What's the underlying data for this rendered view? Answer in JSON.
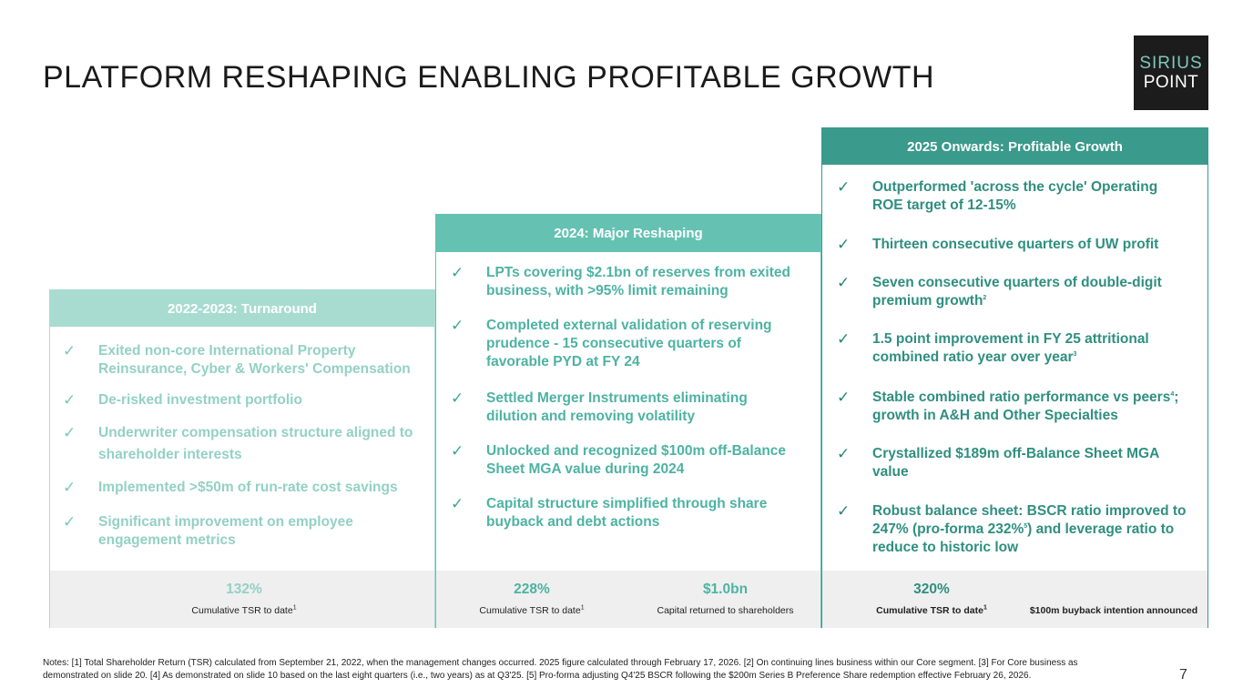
{
  "title": "PLATFORM RESHAPING ENABLING PROFITABLE GROWTH",
  "logo": {
    "line1": "SIRIUS",
    "line2": "POINT"
  },
  "check_glyph": "✓",
  "colors": {
    "phase1": "#a8dcd1",
    "phase2": "#65c2b2",
    "phase3": "#3a9a8b"
  },
  "columns": [
    {
      "header": "2022-2023: Turnaround",
      "items": [
        "Exited non-core International Property Reinsurance, Cyber & Workers' Compensation",
        "De-risked investment portfolio",
        "Underwriter compensation structure aligned to shareholder interests",
        "Implemented >$50m of run-rate cost savings",
        "Significant improvement on employee engagement metrics"
      ],
      "metrics": [
        {
          "value": "132%",
          "label": "Cumulative TSR to date",
          "note": "1"
        }
      ]
    },
    {
      "header": "2024: Major Reshaping",
      "items": [
        "LPTs covering $2.1bn of reserves from exited business, with >95% limit remaining",
        "Completed external validation of reserving prudence - 15 consecutive quarters of favorable PYD at FY 24",
        "Settled Merger Instruments eliminating dilution and removing volatility",
        "Unlocked and recognized $100m off-Balance Sheet MGA value during 2024",
        "Capital structure simplified through share buyback and debt actions"
      ],
      "metrics": [
        {
          "value": "228%",
          "label": "Cumulative TSR to date",
          "note": "1"
        },
        {
          "value": "$1.0bn",
          "label": "Capital returned to shareholders"
        }
      ]
    },
    {
      "header": "2025 Onwards: Profitable Growth",
      "items": [
        "Outperformed 'across the cycle' Operating ROE target of 12-15%",
        "Thirteen consecutive quarters of UW profit",
        "Seven consecutive quarters of double-digit premium growth",
        "1.5 point improvement in FY 25 attritional combined ratio year over year",
        "Stable combined ratio performance vs peers",
        "growth in A&H and Other Specialties",
        "Crystallized $189m off-Balance Sheet MGA value",
        "Robust balance sheet: BSCR ratio improved to 247% (pro-forma 232%",
        ") and leverage ratio to reduce to historic low"
      ],
      "footnotes": {
        "premium": "2",
        "attritional": "3",
        "peers": "4",
        "proforma": "5"
      },
      "metrics": [
        {
          "value": "320%",
          "label": "Cumulative TSR to date",
          "note": "1"
        },
        {
          "value": "",
          "label": "$100m buyback intention announced"
        }
      ]
    }
  ],
  "notes": "Notes: [1] Total Shareholder Return (TSR) calculated from September 21, 2022, when the management changes occurred. 2025 figure calculated through February 17, 2026. [2]  On continuing lines business within our Core segment. [3] For Core business as demonstrated on slide 20. [4] As demonstrated on slide 10 based on the last eight quarters (i.e., two years) as at Q3'25. [5] Pro-forma adjusting Q4'25 BSCR following the $200m Series B Preference Share redemption effective February 26, 2026.",
  "page_number": "7"
}
